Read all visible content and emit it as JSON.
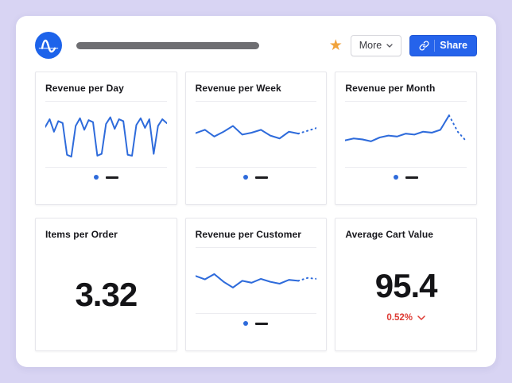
{
  "colors": {
    "background": "#d8d4f3",
    "panel": "#ffffff",
    "line_blue": "#2e6bdb",
    "accent_blue": "#2563eb",
    "star_orange": "#f1a33c",
    "negative_red": "#de3a33",
    "title_placeholder_gray": "#6e6e72"
  },
  "header": {
    "logo": "amplitude-logo",
    "more_label": "More",
    "share_label": "Share"
  },
  "icons": {
    "star_glyph": "★"
  },
  "cards": [
    {
      "title": "Revenue per Day",
      "kind": "line",
      "series": {
        "solid": [
          68,
          84,
          58,
          80,
          76,
          10,
          6,
          70,
          86,
          62,
          82,
          78,
          8,
          12,
          74,
          88,
          64,
          84,
          80,
          10,
          8,
          72,
          86,
          66,
          84,
          12,
          70,
          84,
          76
        ],
        "dotted": []
      }
    },
    {
      "title": "Revenue per Week",
      "kind": "line",
      "series": {
        "solid": [
          55,
          62,
          48,
          58,
          70,
          52,
          56,
          62,
          50,
          44,
          58,
          54
        ],
        "dotted": [
          54,
          60,
          66
        ]
      }
    },
    {
      "title": "Revenue per Month",
      "kind": "line",
      "series": {
        "solid": [
          40,
          44,
          42,
          38,
          46,
          50,
          48,
          54,
          52,
          58,
          56,
          62,
          92
        ],
        "dotted": [
          92,
          58,
          38
        ]
      }
    },
    {
      "title": "Items per Order",
      "kind": "number",
      "value": "3.32"
    },
    {
      "title": "Revenue per Customer",
      "kind": "line",
      "series": {
        "solid": [
          62,
          55,
          66,
          50,
          38,
          52,
          48,
          56,
          50,
          46,
          54,
          52
        ],
        "dotted": [
          52,
          58,
          56
        ]
      }
    },
    {
      "title": "Average Cart Value",
      "kind": "number",
      "value": "95.4",
      "delta": "0.52%",
      "delta_direction": "down"
    }
  ]
}
